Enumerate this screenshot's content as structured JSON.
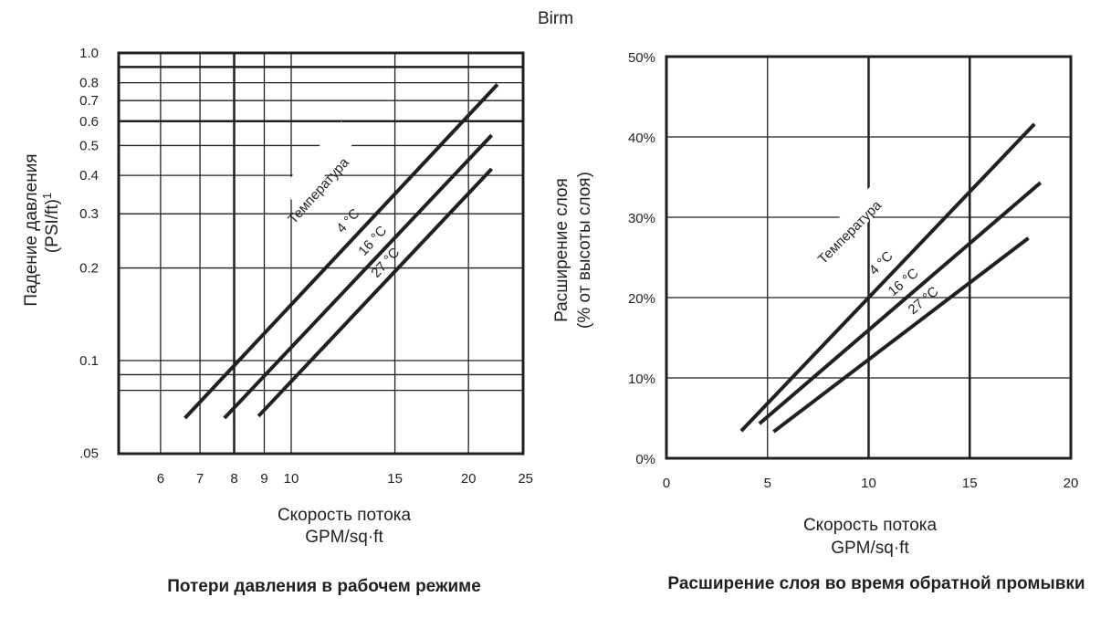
{
  "page": {
    "title": "Birm"
  },
  "colors": {
    "ink": "#231f20",
    "background": "#ffffff"
  },
  "chart_data": [
    {
      "type": "line",
      "title": "Потери давления в рабочем режиме",
      "xlabel": "Скорость потока",
      "xlabel_units": "GPM/sq·ft",
      "ylabel": "Падение давления",
      "ylabel_units": "(PSI/ft)",
      "ylabel_footnote": "1",
      "xscale": "log",
      "yscale": "log",
      "xlim": [
        5,
        25
      ],
      "ylim": [
        0.05,
        1.0
      ],
      "x_ticks": [
        "6",
        "7",
        "8",
        "9",
        "10",
        "15",
        "20",
        "25"
      ],
      "x_tick_values": [
        6,
        7,
        8,
        9,
        10,
        15,
        20,
        25
      ],
      "y_ticks": [
        "1.0",
        "0.8",
        "0.7",
        "0.6",
        "0.5",
        "0.4",
        "0.3",
        "0.2",
        "0.1",
        ".05"
      ],
      "y_tick_values": [
        1.0,
        0.8,
        0.7,
        0.6,
        0.5,
        0.4,
        0.3,
        0.2,
        0.1,
        0.05
      ],
      "extra_gridlines_y": [
        0.9,
        0.09,
        0.08
      ],
      "grid": true,
      "legend_title": "Температура",
      "series": [
        {
          "name": "4 °C",
          "x": [
            6.6,
            22.4
          ],
          "y": [
            0.065,
            0.79
          ]
        },
        {
          "name": "16 °C",
          "x": [
            7.7,
            21.9
          ],
          "y": [
            0.065,
            0.54
          ]
        },
        {
          "name": "27 °C",
          "x": [
            8.8,
            21.9
          ],
          "y": [
            0.066,
            0.42
          ]
        }
      ]
    },
    {
      "type": "line",
      "title": "Расширение слоя во время обратной промывки",
      "xlabel": "Скорость потока",
      "xlabel_units": "GPM/sq·ft",
      "ylabel": "Расширение слоя",
      "ylabel_units": "(% от высоты слоя)",
      "xlim": [
        0,
        20
      ],
      "ylim": [
        0,
        50
      ],
      "x_ticks": [
        "0",
        "5",
        "10",
        "15",
        "20"
      ],
      "y_ticks": [
        "50%",
        "40%",
        "30%",
        "20%",
        "10%",
        "0%"
      ],
      "grid": true,
      "legend_title": "Температура",
      "series": [
        {
          "name": "4 °C",
          "x": [
            3.7,
            18.2
          ],
          "y": [
            3.4,
            41.6
          ]
        },
        {
          "name": "16 °C",
          "x": [
            4.6,
            18.5
          ],
          "y": [
            4.3,
            34.3
          ]
        },
        {
          "name": "27 °C",
          "x": [
            5.3,
            17.9
          ],
          "y": [
            3.3,
            27.4
          ]
        }
      ]
    }
  ]
}
